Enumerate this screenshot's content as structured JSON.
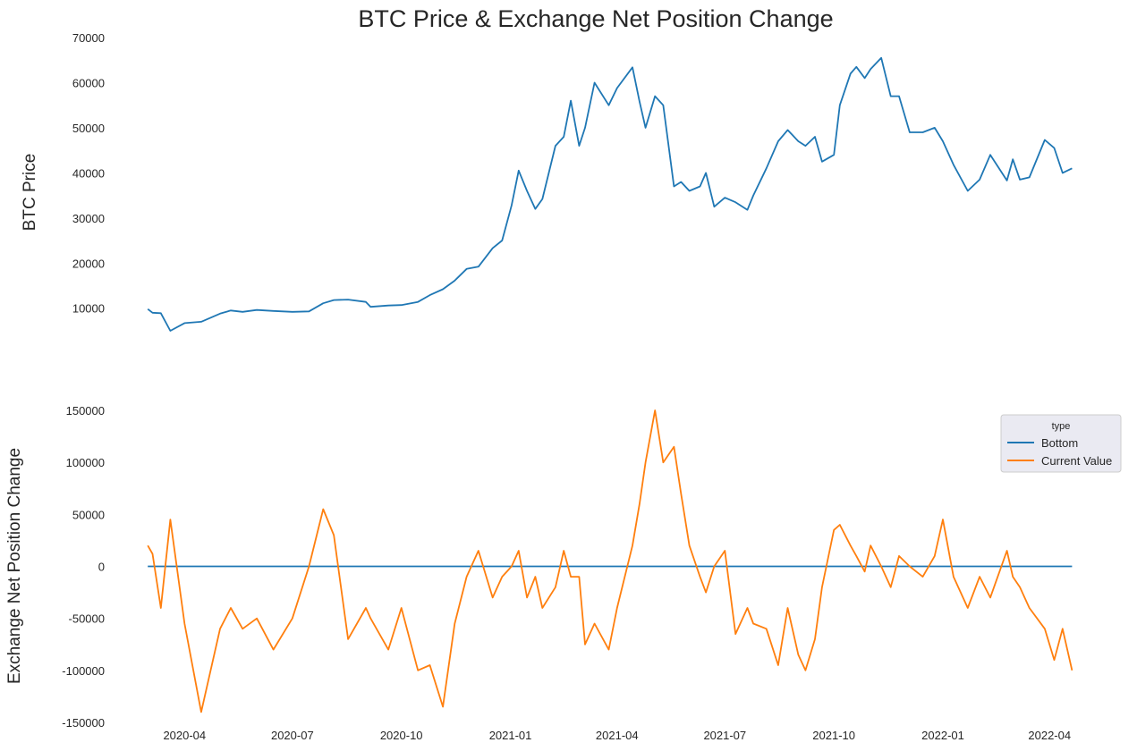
{
  "chart_data": {
    "title": "BTC Price & Exchange Net Position Change",
    "type": "line",
    "x": [
      "2020-03-01",
      "2020-03-05",
      "2020-03-12",
      "2020-03-20",
      "2020-04-01",
      "2020-04-15",
      "2020-05-01",
      "2020-05-10",
      "2020-05-20",
      "2020-06-01",
      "2020-06-15",
      "2020-07-01",
      "2020-07-15",
      "2020-07-27",
      "2020-08-05",
      "2020-08-17",
      "2020-09-01",
      "2020-09-05",
      "2020-09-20",
      "2020-10-01",
      "2020-10-15",
      "2020-10-25",
      "2020-11-05",
      "2020-11-15",
      "2020-11-25",
      "2020-12-05",
      "2020-12-17",
      "2020-12-25",
      "2021-01-02",
      "2021-01-08",
      "2021-01-15",
      "2021-01-22",
      "2021-01-28",
      "2021-02-08",
      "2021-02-15",
      "2021-02-21",
      "2021-02-28",
      "2021-03-05",
      "2021-03-13",
      "2021-03-25",
      "2021-04-01",
      "2021-04-14",
      "2021-04-20",
      "2021-04-25",
      "2021-05-03",
      "2021-05-10",
      "2021-05-19",
      "2021-05-25",
      "2021-06-01",
      "2021-06-10",
      "2021-06-15",
      "2021-06-22",
      "2021-07-01",
      "2021-07-10",
      "2021-07-20",
      "2021-07-25",
      "2021-08-05",
      "2021-08-15",
      "2021-08-23",
      "2021-09-01",
      "2021-09-07",
      "2021-09-15",
      "2021-09-21",
      "2021-10-01",
      "2021-10-06",
      "2021-10-15",
      "2021-10-20",
      "2021-10-27",
      "2021-11-01",
      "2021-11-10",
      "2021-11-18",
      "2021-11-25",
      "2021-12-04",
      "2021-12-15",
      "2021-12-25",
      "2022-01-01",
      "2022-01-10",
      "2022-01-22",
      "2022-02-01",
      "2022-02-10",
      "2022-02-24",
      "2022-03-01",
      "2022-03-07",
      "2022-03-15",
      "2022-03-28",
      "2022-04-05",
      "2022-04-12",
      "2022-04-20"
    ],
    "xticks": [
      "2020-04",
      "2020-07",
      "2020-10",
      "2021-01",
      "2021-04",
      "2021-07",
      "2021-10",
      "2022-01",
      "2022-04"
    ],
    "xlim": [
      "2020-02-20",
      "2022-04-28"
    ],
    "panels": [
      {
        "ylabel": "BTC  Price",
        "ylim": [
          4000,
          70000
        ],
        "yticks": [
          10000,
          20000,
          30000,
          40000,
          50000,
          60000,
          70000
        ],
        "series": [
          {
            "color": "#1f77b4",
            "values": [
              9800,
              9000,
              8900,
              5000,
              6700,
              7000,
              8800,
              9500,
              9200,
              9600,
              9400,
              9200,
              9300,
              11100,
              11800,
              11900,
              11400,
              10300,
              10600,
              10700,
              11400,
              12900,
              14200,
              16100,
              18700,
              19200,
              23300,
              25000,
              32800,
              40500,
              36000,
              32000,
              34200,
              46000,
              48000,
              56000,
              46000,
              50000,
              60000,
              55000,
              58800,
              63400,
              55800,
              50000,
              57000,
              55000,
              37000,
              38000,
              36000,
              37000,
              40000,
              32500,
              34500,
              33500,
              31800,
              35000,
              41000,
              47000,
              49500,
              47000,
              46000,
              48000,
              42500,
              44000,
              55000,
              62000,
              63500,
              61000,
              63000,
              65500,
              57000,
              57000,
              49000,
              49000,
              50000,
              47000,
              41800,
              36000,
              38500,
              44000,
              38300,
              43000,
              38500,
              39000,
              47300,
              45500,
              40000,
              41000
            ]
          }
        ]
      },
      {
        "ylabel": "Exchange Net Position Change",
        "ylim": [
          -150000,
          150000
        ],
        "yticks": [
          -150000,
          -100000,
          -50000,
          0,
          50000,
          100000,
          150000
        ],
        "series": [
          {
            "name": "Bottom",
            "color": "#1f77b4",
            "values": [
              0,
              0,
              0,
              0,
              0,
              0,
              0,
              0,
              0,
              0,
              0,
              0,
              0,
              0,
              0,
              0,
              0,
              0,
              0,
              0,
              0,
              0,
              0,
              0,
              0,
              0,
              0,
              0,
              0,
              0,
              0,
              0,
              0,
              0,
              0,
              0,
              0,
              0,
              0,
              0,
              0,
              0,
              0,
              0,
              0,
              0,
              0,
              0,
              0,
              0,
              0,
              0,
              0,
              0,
              0,
              0,
              0,
              0,
              0,
              0,
              0,
              0,
              0,
              0,
              0,
              0,
              0,
              0,
              0,
              0,
              0,
              0,
              0,
              0,
              0,
              0,
              0,
              0,
              0,
              0,
              0,
              0,
              0,
              0,
              0,
              0,
              0,
              0
            ]
          },
          {
            "name": "Current Value",
            "color": "#ff7f0e",
            "values": [
              20000,
              12000,
              -40000,
              45000,
              -55000,
              -140000,
              -60000,
              -40000,
              -60000,
              -50000,
              -80000,
              -50000,
              0,
              55000,
              30000,
              -70000,
              -40000,
              -50000,
              -80000,
              -40000,
              -100000,
              -95000,
              -135000,
              -55000,
              -10000,
              15000,
              -30000,
              -10000,
              0,
              15000,
              -30000,
              -10000,
              -40000,
              -20000,
              15000,
              -10000,
              -10000,
              -75000,
              -55000,
              -80000,
              -40000,
              20000,
              60000,
              100000,
              150000,
              100000,
              115000,
              70000,
              20000,
              -10000,
              -25000,
              0,
              15000,
              -65000,
              -40000,
              -55000,
              -60000,
              -95000,
              -40000,
              -85000,
              -100000,
              -70000,
              -20000,
              35000,
              40000,
              20000,
              10000,
              -5000,
              20000,
              0,
              -20000,
              10000,
              0,
              -10000,
              10000,
              45000,
              -10000,
              -40000,
              -10000,
              -30000,
              15000,
              -10000,
              -20000,
              -40000,
              -60000,
              -90000,
              -60000,
              -100000
            ]
          }
        ]
      }
    ],
    "legend": {
      "title": "type",
      "entries": [
        {
          "label": "Bottom",
          "color": "#1f77b4"
        },
        {
          "label": "Current Value",
          "color": "#ff7f0e"
        }
      ]
    }
  }
}
